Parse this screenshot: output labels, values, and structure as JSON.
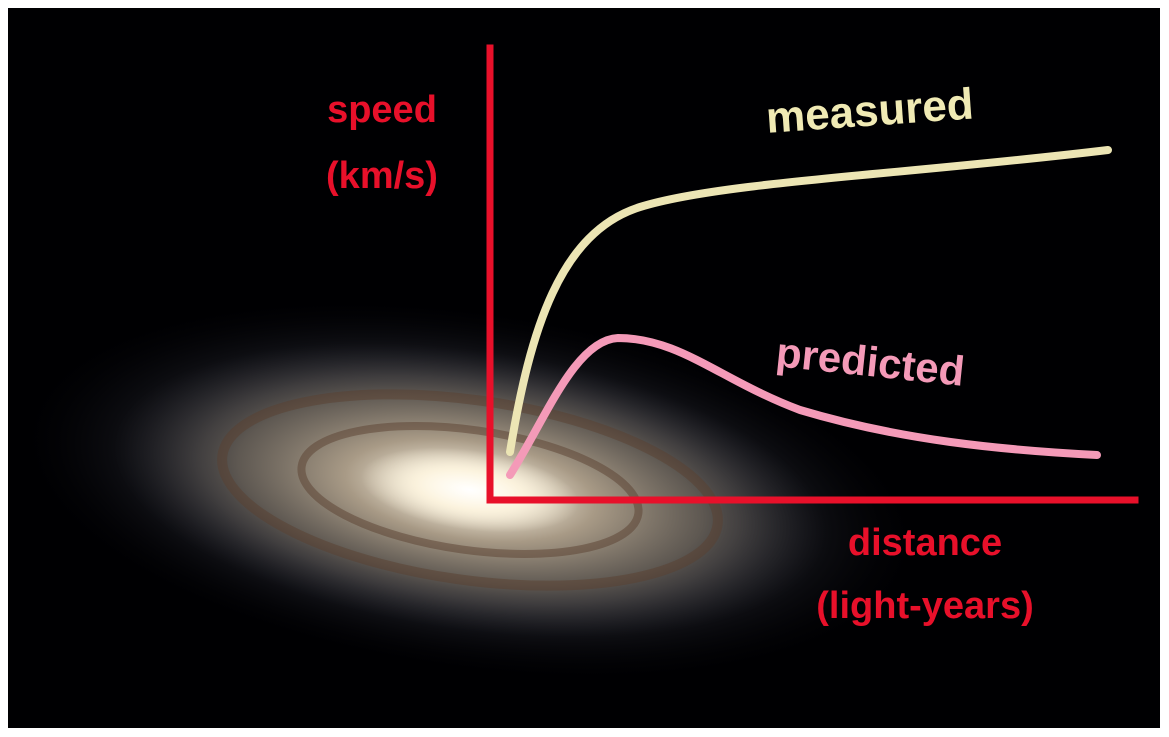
{
  "axes": {
    "y_label": [
      "speed",
      "(km/s)"
    ],
    "x_label": [
      "distance",
      "(light-years)"
    ]
  },
  "curves": [
    {
      "label": "measured"
    },
    {
      "label": "predicted"
    }
  ]
}
